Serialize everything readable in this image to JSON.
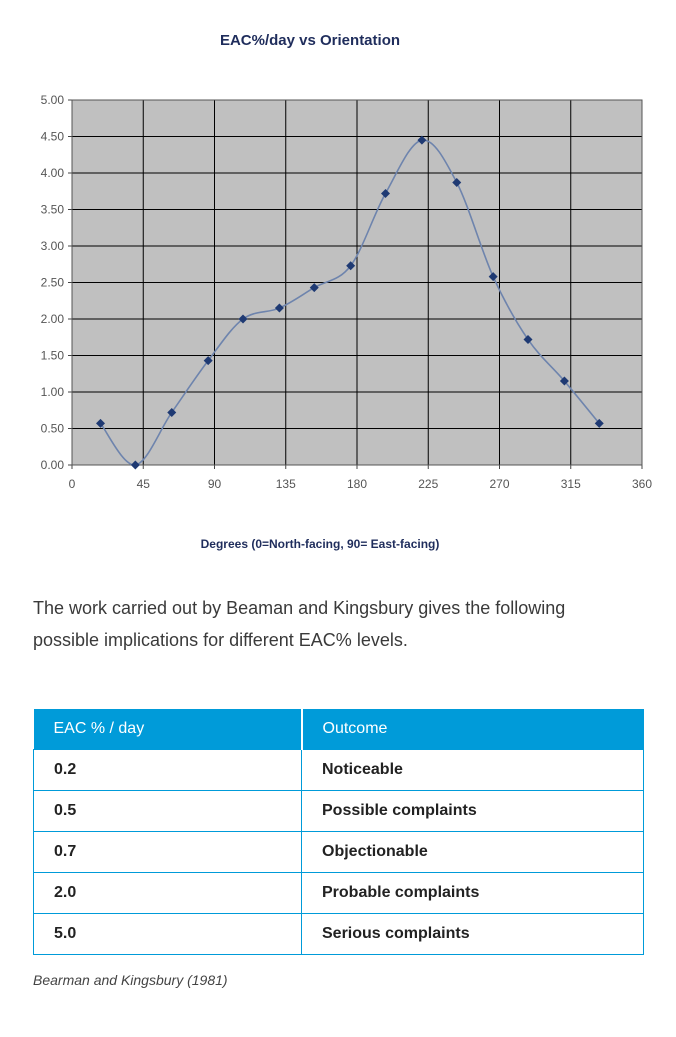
{
  "chart_data": {
    "type": "scatter",
    "title": "EAC%/day vs Orientation",
    "xlabel": "Degrees (0=North-facing, 90= East-facing)",
    "ylabel": "",
    "xlim": [
      0,
      360
    ],
    "ylim": [
      0,
      5
    ],
    "xticks": [
      "0",
      "45",
      "90",
      "135",
      "180",
      "225",
      "270",
      "315",
      "360"
    ],
    "yticks": [
      "0.00",
      "0.50",
      "1.00",
      "1.50",
      "2.00",
      "2.50",
      "3.00",
      "3.50",
      "4.00",
      "4.50",
      "5.00"
    ],
    "grid": true,
    "smoothed_line": true,
    "series": [
      {
        "x": [
          18,
          40,
          63,
          86,
          108,
          131,
          153,
          176,
          198,
          221,
          243,
          266,
          288,
          311,
          333
        ],
        "y": [
          0.57,
          0.0,
          0.72,
          1.43,
          2.0,
          2.15,
          2.43,
          2.73,
          3.72,
          4.45,
          3.87,
          2.58,
          1.72,
          1.15,
          0.57
        ]
      }
    ],
    "colors": {
      "plot_bg": "#c0c0c0",
      "grid": "#000000",
      "line": "#6e84ad",
      "marker": "#1f3a73"
    }
  },
  "text": {
    "intro": "The work carried out by Beaman and Kingsbury gives the following possible implications for different EAC% levels."
  },
  "table": {
    "header": [
      "EAC % / day",
      "Outcome"
    ],
    "rows": [
      [
        "0.2",
        "Noticeable"
      ],
      [
        "0.5",
        "Possible complaints"
      ],
      [
        "0.7",
        "Objectionable"
      ],
      [
        "2.0",
        "Probable complaints"
      ],
      [
        "5.0",
        "Serious complaints"
      ]
    ],
    "header_color": "#009bd9"
  },
  "source": "Bearman and Kingsbury (1981)"
}
